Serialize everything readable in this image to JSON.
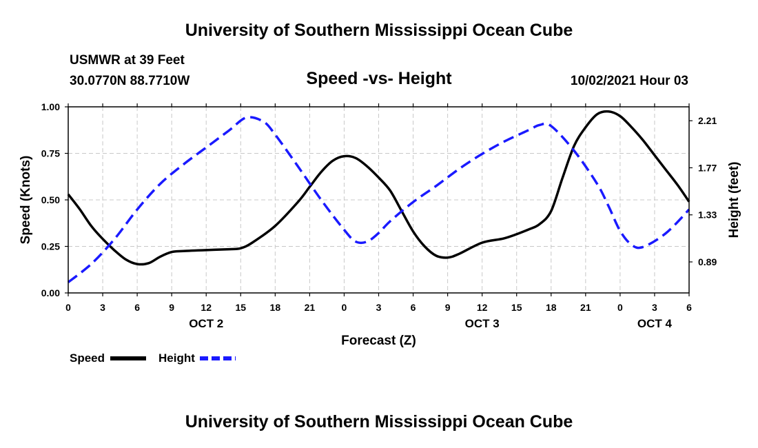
{
  "header": {
    "title_top": "University of Southern Mississippi Ocean Cube",
    "station": "USMWR at 39 Feet",
    "coords": "30.0770N  88.7710W",
    "chart_title": "Speed -vs- Height",
    "datetime": "10/02/2021 Hour 03",
    "title_bottom": "University of Southern Mississippi Ocean Cube"
  },
  "chart_data": {
    "type": "line",
    "title": "Speed -vs- Height",
    "xlabel": "Forecast (Z)",
    "ylabel": "Speed (Knots)",
    "y2label": "Height (feet)",
    "x_range": [
      0,
      54
    ],
    "x_unit": "hours from 10/02 00Z",
    "x_ticks": [
      0,
      3,
      6,
      9,
      12,
      15,
      18,
      21,
      24,
      27,
      30,
      33,
      36,
      39,
      42,
      45,
      48,
      51,
      54
    ],
    "x_tick_labels": [
      "0",
      "3",
      "6",
      "9",
      "12",
      "15",
      "18",
      "21",
      "0",
      "3",
      "6",
      "9",
      "12",
      "15",
      "18",
      "21",
      "0",
      "3",
      "6"
    ],
    "day_labels": [
      {
        "label": "OCT 2",
        "x": 12
      },
      {
        "label": "OCT 3",
        "x": 36
      },
      {
        "label": "OCT 4",
        "x": 51
      }
    ],
    "ylim": [
      0,
      1
    ],
    "y_ticks": [
      0,
      0.25,
      0.5,
      0.75,
      1.0
    ],
    "y_tick_labels": [
      "0.00",
      "0.25",
      "0.50",
      "0.75",
      "1.00"
    ],
    "y2lim": [
      0.6,
      2.34
    ],
    "y2_ticks": [
      0.89,
      1.33,
      1.77,
      2.21
    ],
    "y2_tick_labels": [
      "0.89",
      "1.33",
      "1.77",
      "2.21"
    ],
    "grid": true,
    "series": [
      {
        "name": "Speed",
        "axis": "left",
        "color": "#000000",
        "dash": "solid",
        "x": [
          0,
          1,
          2,
          3,
          4,
          5,
          6,
          7,
          8,
          9,
          10,
          12,
          14,
          15,
          16,
          18,
          20,
          21,
          22,
          23,
          24,
          25,
          26,
          27,
          28,
          29,
          30,
          31,
          32,
          33,
          34,
          36,
          38,
          40,
          41,
          42,
          43,
          44,
          45,
          46,
          47,
          48,
          49,
          50,
          51,
          52,
          53,
          54
        ],
        "y": [
          0.53,
          0.45,
          0.36,
          0.29,
          0.23,
          0.18,
          0.155,
          0.16,
          0.195,
          0.22,
          0.225,
          0.23,
          0.235,
          0.24,
          0.27,
          0.36,
          0.49,
          0.57,
          0.65,
          0.71,
          0.735,
          0.725,
          0.68,
          0.62,
          0.55,
          0.44,
          0.33,
          0.25,
          0.2,
          0.19,
          0.21,
          0.27,
          0.295,
          0.34,
          0.37,
          0.44,
          0.62,
          0.79,
          0.89,
          0.96,
          0.975,
          0.95,
          0.89,
          0.82,
          0.74,
          0.66,
          0.58,
          0.49
        ]
      },
      {
        "name": "Height",
        "axis": "right",
        "color": "#1a1aff",
        "dash": "dashed",
        "x": [
          0,
          2,
          4,
          6,
          8,
          10,
          12,
          14,
          15.5,
          17,
          18,
          20,
          22,
          24,
          25,
          26,
          27,
          28,
          30,
          32,
          34,
          36,
          38,
          40,
          41,
          42,
          44,
          46,
          47,
          48,
          49,
          50,
          52,
          54
        ],
        "y": [
          0.7,
          0.87,
          1.1,
          1.38,
          1.62,
          1.8,
          1.96,
          2.12,
          2.24,
          2.2,
          2.08,
          1.78,
          1.47,
          1.19,
          1.08,
          1.08,
          1.16,
          1.27,
          1.45,
          1.6,
          1.76,
          1.9,
          2.02,
          2.12,
          2.17,
          2.16,
          1.93,
          1.62,
          1.41,
          1.18,
          1.05,
          1.03,
          1.16,
          1.38
        ]
      }
    ],
    "legend": {
      "position": "bottom-left",
      "items": [
        "Speed",
        "Height"
      ]
    }
  }
}
